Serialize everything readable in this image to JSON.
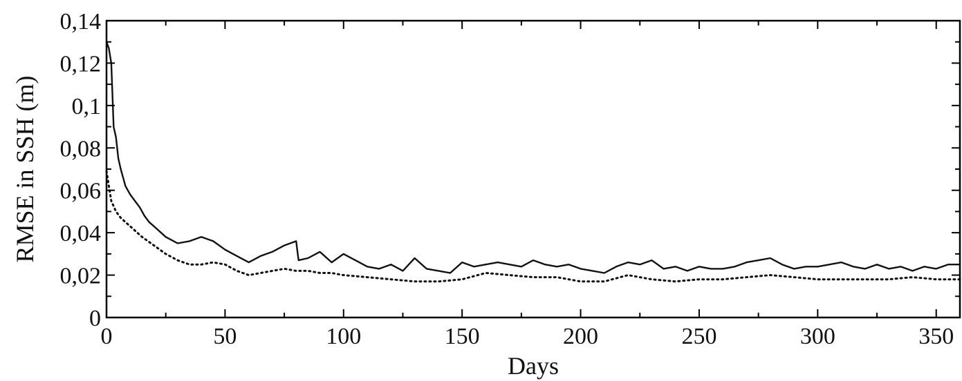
{
  "chart_data": {
    "type": "line",
    "title": "",
    "xlabel": "Days",
    "ylabel": "RMSE in SSH (m)",
    "xlim": [
      0,
      360
    ],
    "ylim": [
      0,
      0.14
    ],
    "grid": false,
    "x_ticks": [
      0,
      50,
      100,
      150,
      200,
      250,
      300,
      350
    ],
    "x_tick_labels": [
      "0",
      "50",
      "100",
      "150",
      "200",
      "250",
      "300",
      "350"
    ],
    "y_ticks": [
      0,
      0.02,
      0.04,
      0.06,
      0.08,
      0.1,
      0.12,
      0.14
    ],
    "y_tick_labels": [
      "0",
      "0,02",
      "0,04",
      "0,06",
      "0,08",
      "0,1",
      "0,12",
      "0,14"
    ],
    "series": [
      {
        "style": "solid",
        "color": "#111111",
        "x": [
          0,
          1,
          2,
          3,
          4,
          5,
          6,
          8,
          10,
          12,
          14,
          16,
          18,
          20,
          25,
          30,
          35,
          40,
          45,
          50,
          55,
          60,
          65,
          70,
          75,
          80,
          81,
          85,
          90,
          95,
          100,
          105,
          110,
          115,
          120,
          125,
          130,
          135,
          140,
          145,
          150,
          155,
          160,
          165,
          170,
          175,
          180,
          185,
          190,
          195,
          200,
          205,
          210,
          215,
          220,
          225,
          230,
          235,
          240,
          245,
          250,
          255,
          260,
          265,
          270,
          275,
          280,
          285,
          290,
          295,
          300,
          305,
          310,
          315,
          320,
          325,
          330,
          335,
          340,
          345,
          350,
          355,
          360
        ],
        "y": [
          0.13,
          0.127,
          0.12,
          0.09,
          0.085,
          0.075,
          0.07,
          0.062,
          0.058,
          0.055,
          0.052,
          0.048,
          0.045,
          0.043,
          0.038,
          0.035,
          0.036,
          0.038,
          0.036,
          0.032,
          0.029,
          0.026,
          0.029,
          0.031,
          0.034,
          0.036,
          0.027,
          0.028,
          0.031,
          0.026,
          0.03,
          0.027,
          0.024,
          0.023,
          0.025,
          0.022,
          0.028,
          0.023,
          0.022,
          0.021,
          0.026,
          0.024,
          0.025,
          0.026,
          0.025,
          0.024,
          0.027,
          0.025,
          0.024,
          0.025,
          0.023,
          0.022,
          0.021,
          0.024,
          0.026,
          0.025,
          0.027,
          0.023,
          0.024,
          0.022,
          0.024,
          0.023,
          0.023,
          0.024,
          0.026,
          0.027,
          0.028,
          0.025,
          0.023,
          0.024,
          0.024,
          0.025,
          0.026,
          0.024,
          0.023,
          0.025,
          0.023,
          0.024,
          0.022,
          0.024,
          0.023,
          0.025,
          0.025
        ]
      },
      {
        "style": "dotted",
        "color": "#111111",
        "x": [
          0,
          2,
          4,
          6,
          8,
          10,
          15,
          20,
          25,
          30,
          35,
          40,
          45,
          50,
          55,
          60,
          65,
          70,
          75,
          80,
          85,
          90,
          95,
          100,
          110,
          120,
          130,
          140,
          150,
          160,
          170,
          180,
          190,
          200,
          210,
          220,
          230,
          240,
          250,
          260,
          270,
          280,
          290,
          300,
          310,
          320,
          330,
          340,
          350,
          360
        ],
        "y": [
          0.069,
          0.055,
          0.05,
          0.047,
          0.045,
          0.043,
          0.038,
          0.034,
          0.03,
          0.027,
          0.025,
          0.025,
          0.026,
          0.025,
          0.022,
          0.02,
          0.021,
          0.022,
          0.023,
          0.022,
          0.022,
          0.021,
          0.021,
          0.02,
          0.019,
          0.018,
          0.017,
          0.017,
          0.018,
          0.021,
          0.02,
          0.019,
          0.019,
          0.017,
          0.017,
          0.02,
          0.018,
          0.017,
          0.018,
          0.018,
          0.019,
          0.02,
          0.019,
          0.018,
          0.018,
          0.018,
          0.018,
          0.019,
          0.018,
          0.018
        ]
      }
    ]
  }
}
